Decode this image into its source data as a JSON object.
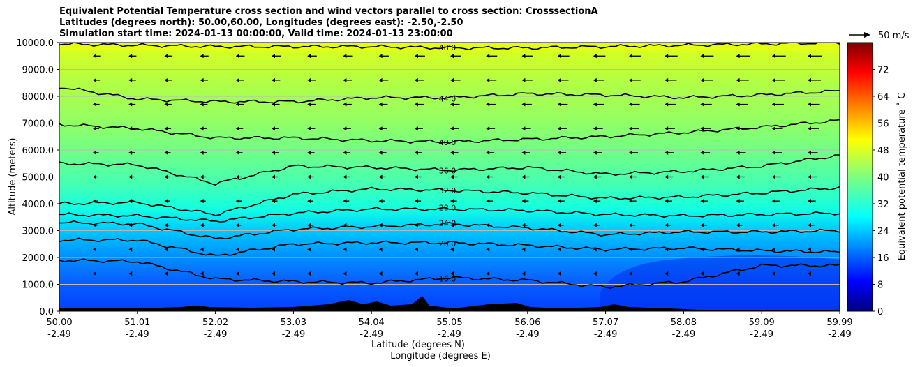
{
  "title_lines": [
    "Equivalent Potential Temperature cross section and wind vectors parallel to cross section: CrosssectionA",
    "Latitudes (degrees north): 50.00,60.00, Longitudes (degrees east): -2.50,-2.50",
    "Simulation start time: 2024-01-13 00:00:00, Valid time: 2024-01-13 23:00:00"
  ],
  "chart_data": {
    "type": "contour",
    "title": "Equivalent Potential Temperature cross section and wind vectors parallel to cross section: CrosssectionA",
    "ylabel": "Altitude (meters)",
    "xlabel_lines": [
      "Latitude (degrees N)",
      "Longitude (degrees E)"
    ],
    "ylim": [
      0,
      10000
    ],
    "y_ticks": [
      "0.0",
      "1000.0",
      "2000.0",
      "3000.0",
      "4000.0",
      "5000.0",
      "6000.0",
      "7000.0",
      "8000.0",
      "9000.0",
      "10000.0"
    ],
    "y_tick_values": [
      0,
      1000,
      2000,
      3000,
      4000,
      5000,
      6000,
      7000,
      8000,
      9000,
      10000
    ],
    "x_ticks": [
      {
        "lat": "50.00",
        "lon": "-2.49"
      },
      {
        "lat": "51.01",
        "lon": "-2.49"
      },
      {
        "lat": "52.02",
        "lon": "-2.49"
      },
      {
        "lat": "53.03",
        "lon": "-2.49"
      },
      {
        "lat": "54.04",
        "lon": "-2.49"
      },
      {
        "lat": "55.05",
        "lon": "-2.49"
      },
      {
        "lat": "56.06",
        "lon": "-2.49"
      },
      {
        "lat": "57.07",
        "lon": "-2.49"
      },
      {
        "lat": "58.08",
        "lon": "-2.49"
      },
      {
        "lat": "59.09",
        "lon": "-2.49"
      },
      {
        "lat": "59.99",
        "lon": "-2.49"
      }
    ],
    "xlim": [
      50.0,
      59.99
    ],
    "colorbar": {
      "label": "Equivalent potential temperature ˚ C",
      "range": [
        0,
        80
      ],
      "ticks": [
        "0",
        "8",
        "16",
        "24",
        "32",
        "40",
        "48",
        "56",
        "64",
        "72"
      ],
      "tick_values": [
        0,
        8,
        16,
        24,
        32,
        40,
        48,
        56,
        64,
        72
      ],
      "colormap": "jet"
    },
    "quiver_key": "50 m/s",
    "contours": [
      {
        "level": 16,
        "label": "16.0",
        "y": [
          1900,
          1850,
          1200,
          1100,
          1050,
          1250,
          1150,
          900,
          1100,
          1700,
          1700
        ]
      },
      {
        "level": 20,
        "label": "20.0",
        "y": [
          2650,
          2650,
          2050,
          2500,
          2550,
          2550,
          2450,
          2300,
          2350,
          2250,
          2200
        ]
      },
      {
        "level": 24,
        "label": "24.0",
        "y": [
          3300,
          3250,
          2700,
          3050,
          3150,
          3250,
          3100,
          2850,
          2950,
          2950,
          3000
        ]
      },
      {
        "level": 28,
        "label": "28.0",
        "y": [
          3600,
          3550,
          3350,
          3650,
          3800,
          3800,
          3750,
          3600,
          3550,
          3600,
          3650
        ]
      },
      {
        "level": 32,
        "label": "32.0",
        "y": [
          4000,
          4050,
          3600,
          4350,
          4550,
          4500,
          4400,
          4200,
          4250,
          4400,
          4600
        ]
      },
      {
        "level": 36,
        "label": "36.0",
        "y": [
          5500,
          5450,
          4750,
          5400,
          5350,
          5250,
          5350,
          5100,
          5200,
          5400,
          5800
        ]
      },
      {
        "level": 40,
        "label": "40.0",
        "y": [
          6950,
          6800,
          6450,
          6450,
          6350,
          6300,
          6400,
          6500,
          6650,
          6850,
          7100
        ]
      },
      {
        "level": 44,
        "label": "44.0",
        "y": [
          8350,
          7900,
          7800,
          7800,
          7950,
          7950,
          8100,
          8050,
          7950,
          8050,
          8200
        ]
      },
      {
        "level": 48,
        "label": "48.0",
        "y": [
          9950,
          9900,
          9850,
          9850,
          9850,
          9800,
          9800,
          9850,
          9900,
          9950,
          10000
        ]
      }
    ],
    "wind_direction": "southward (toward lower latitude)"
  }
}
